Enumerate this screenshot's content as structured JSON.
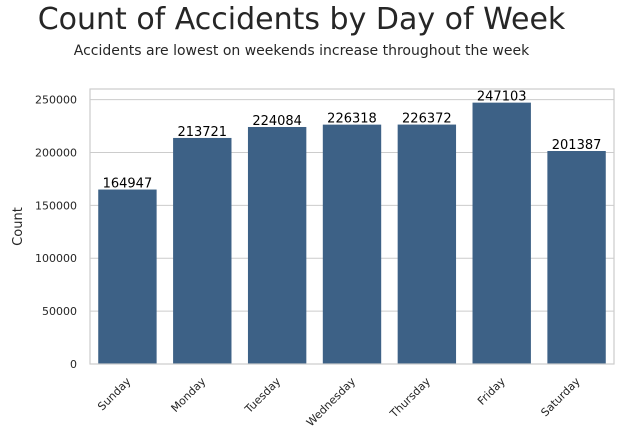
{
  "chart_data": {
    "type": "bar",
    "title": "Count of Accidents by Day of Week",
    "subtitle": "Accidents are lowest on weekends increase throughout the week",
    "xlabel": "",
    "ylabel": "Count",
    "categories": [
      "Sunday",
      "Monday",
      "Tuesday",
      "Wednesday",
      "Thursday",
      "Friday",
      "Saturday"
    ],
    "values": [
      164947,
      213721,
      224084,
      226318,
      226372,
      247103,
      201387
    ],
    "data_labels": [
      "164947",
      "213721",
      "224084",
      "226318",
      "226372",
      "247103",
      "201387"
    ],
    "ylim": [
      0,
      260000
    ],
    "yticks": [
      0,
      50000,
      100000,
      150000,
      200000,
      250000
    ],
    "ytick_labels": [
      "0",
      "50000",
      "100000",
      "150000",
      "200000",
      "250000"
    ],
    "grid": "y",
    "bar_color": "#3d6186",
    "grid_color": "#cccccc",
    "frame_color": "#cccccc"
  }
}
